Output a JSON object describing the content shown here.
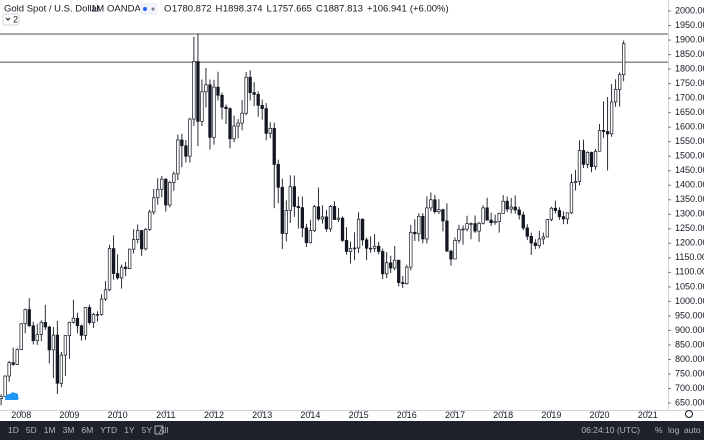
{
  "chart_data": {
    "type": "candlestick",
    "title": "Gold Spot / U.S. Dollar",
    "interval": "1M",
    "source": "OANDA",
    "ohlc_labels": [
      "O",
      "H",
      "L",
      "C"
    ],
    "change": {
      "value": 106.941,
      "label": "+106.941"
    },
    "change_pct": {
      "value": 6.0,
      "label": "(+6.00%)"
    },
    "indicator_count": "2",
    "up_color": "#ffffff",
    "down_color": "#131722",
    "border_color": "#131722",
    "x": [
      2007.583,
      2007.667,
      2007.75,
      2007.833,
      2007.917,
      2008,
      2008.083,
      2008.167,
      2008.25,
      2008.333,
      2008.417,
      2008.5,
      2008.583,
      2008.667,
      2008.75,
      2008.833,
      2008.917,
      2009,
      2009.083,
      2009.167,
      2009.25,
      2009.333,
      2009.417,
      2009.5,
      2009.583,
      2009.667,
      2009.75,
      2009.833,
      2009.917,
      2010,
      2010.083,
      2010.167,
      2010.25,
      2010.333,
      2010.417,
      2010.5,
      2010.583,
      2010.667,
      2010.75,
      2010.833,
      2010.917,
      2011,
      2011.083,
      2011.167,
      2011.25,
      2011.333,
      2011.417,
      2011.5,
      2011.583,
      2011.667,
      2011.75,
      2011.833,
      2011.917,
      2012,
      2012.083,
      2012.167,
      2012.25,
      2012.333,
      2012.417,
      2012.5,
      2012.583,
      2012.667,
      2012.75,
      2012.833,
      2012.917,
      2013,
      2013.083,
      2013.167,
      2013.25,
      2013.333,
      2013.417,
      2013.5,
      2013.583,
      2013.667,
      2013.75,
      2013.833,
      2013.917,
      2014,
      2014.083,
      2014.167,
      2014.25,
      2014.333,
      2014.417,
      2014.5,
      2014.583,
      2014.667,
      2014.75,
      2014.833,
      2014.917,
      2015,
      2015.083,
      2015.167,
      2015.25,
      2015.333,
      2015.417,
      2015.5,
      2015.583,
      2015.667,
      2015.75,
      2015.833,
      2015.917,
      2016,
      2016.083,
      2016.167,
      2016.25,
      2016.333,
      2016.417,
      2016.5,
      2016.583,
      2016.667,
      2016.75,
      2016.833,
      2016.917,
      2017,
      2017.083,
      2017.167,
      2017.25,
      2017.333,
      2017.417,
      2017.5,
      2017.583,
      2017.667,
      2017.75,
      2017.833,
      2017.917,
      2018,
      2018.083,
      2018.167,
      2018.25,
      2018.333,
      2018.417,
      2018.5,
      2018.583,
      2018.667,
      2018.75,
      2018.833,
      2018.917,
      2019,
      2019.083,
      2019.167,
      2019.25,
      2019.333,
      2019.417,
      2019.5,
      2019.583,
      2019.667,
      2019.75,
      2019.833,
      2019.917,
      2020,
      2020.083,
      2020.167,
      2020.25,
      2020.333,
      2020.417,
      2020.5
    ],
    "open": [
      665,
      673,
      743,
      789,
      783,
      834,
      923,
      972,
      916,
      865,
      886,
      928,
      912,
      833,
      884,
      718,
      815,
      882,
      928,
      942,
      916,
      883,
      979,
      927,
      955,
      955,
      1008,
      1040,
      1182,
      1096,
      1081,
      1118,
      1113,
      1180,
      1213,
      1244,
      1181,
      1248,
      1308,
      1357,
      1386,
      1421,
      1332,
      1410,
      1439,
      1556,
      1536,
      1500,
      1628,
      1826,
      1620,
      1722,
      1746,
      1565,
      1738,
      1710,
      1669,
      1664,
      1560,
      1604,
      1614,
      1648,
      1772,
      1719,
      1713,
      1675,
      1664,
      1579,
      1596,
      1472,
      1393,
      1234,
      1313,
      1395,
      1327,
      1323,
      1253,
      1202,
      1244,
      1326,
      1284,
      1291,
      1250,
      1327,
      1282,
      1287,
      1210,
      1172,
      1182,
      1184,
      1283,
      1212,
      1183,
      1183,
      1190,
      1172,
      1095,
      1133,
      1115,
      1142,
      1065,
      1061,
      1118,
      1238,
      1233,
      1293,
      1215,
      1322,
      1350,
      1309,
      1316,
      1277,
      1173,
      1146,
      1210,
      1248,
      1249,
      1268,
      1268,
      1242,
      1269,
      1322,
      1280,
      1271,
      1275,
      1303,
      1345,
      1318,
      1325,
      1315,
      1298,
      1253,
      1224,
      1201,
      1192,
      1215,
      1222,
      1282,
      1321,
      1313,
      1292,
      1284,
      1305,
      1409,
      1413,
      1520,
      1472,
      1513,
      1464,
      1517,
      1589,
      1585,
      1577,
      1687,
      1730,
      1780.872
    ],
    "high": [
      680,
      745,
      795,
      841,
      838,
      925,
      975,
      1011,
      930,
      923,
      935,
      988,
      916,
      912,
      933,
      826,
      884,
      930,
      1006,
      961,
      920,
      981,
      989,
      960,
      966,
      1024,
      1070,
      1195,
      1227,
      1162,
      1127,
      1136,
      1181,
      1249,
      1265,
      1246,
      1253,
      1316,
      1387,
      1424,
      1432,
      1424,
      1415,
      1447,
      1575,
      1577,
      1556,
      1632,
      1912,
      1921,
      1764,
      1804,
      1764,
      1763,
      1791,
      1719,
      1678,
      1668,
      1640,
      1628,
      1693,
      1790,
      1796,
      1755,
      1723,
      1695,
      1683,
      1617,
      1616,
      1488,
      1423,
      1348,
      1434,
      1434,
      1361,
      1361,
      1267,
      1280,
      1332,
      1392,
      1331,
      1315,
      1332,
      1345,
      1322,
      1293,
      1256,
      1206,
      1238,
      1307,
      1286,
      1220,
      1224,
      1232,
      1205,
      1182,
      1170,
      1157,
      1191,
      1143,
      1088,
      1126,
      1263,
      1283,
      1304,
      1304,
      1362,
      1375,
      1367,
      1352,
      1319,
      1338,
      1178,
      1220,
      1264,
      1262,
      1295,
      1272,
      1296,
      1274,
      1331,
      1357,
      1306,
      1299,
      1306,
      1366,
      1361,
      1356,
      1365,
      1326,
      1309,
      1266,
      1237,
      1214,
      1243,
      1237,
      1284,
      1326,
      1347,
      1324,
      1310,
      1306,
      1439,
      1453,
      1555,
      1557,
      1517,
      1516,
      1525,
      1611,
      1689,
      1704,
      1748,
      1765,
      1789,
      1898.374
    ],
    "low": [
      642,
      672,
      723,
      778,
      781,
      832,
      890,
      913,
      852,
      850,
      863,
      902,
      786,
      736,
      681,
      705,
      743,
      802,
      924,
      890,
      865,
      867,
      920,
      909,
      931,
      951,
      1002,
      1035,
      1075,
      1075,
      1044,
      1087,
      1111,
      1165,
      1200,
      1157,
      1175,
      1243,
      1299,
      1333,
      1358,
      1309,
      1324,
      1381,
      1418,
      1462,
      1478,
      1478,
      1604,
      1535,
      1604,
      1668,
      1523,
      1540,
      1692,
      1627,
      1611,
      1527,
      1548,
      1562,
      1589,
      1641,
      1692,
      1673,
      1636,
      1626,
      1555,
      1562,
      1321,
      1338,
      1180,
      1207,
      1270,
      1291,
      1251,
      1221,
      1187,
      1200,
      1239,
      1278,
      1268,
      1240,
      1240,
      1281,
      1273,
      1205,
      1161,
      1131,
      1142,
      1167,
      1192,
      1142,
      1168,
      1170,
      1162,
      1077,
      1080,
      1098,
      1107,
      1052,
      1046,
      1058,
      1107,
      1208,
      1207,
      1200,
      1199,
      1311,
      1302,
      1301,
      1241,
      1171,
      1123,
      1146,
      1200,
      1195,
      1241,
      1214,
      1236,
      1205,
      1265,
      1280,
      1260,
      1264,
      1237,
      1303,
      1307,
      1303,
      1302,
      1282,
      1245,
      1211,
      1160,
      1180,
      1182,
      1196,
      1221,
      1276,
      1303,
      1281,
      1266,
      1266,
      1301,
      1382,
      1400,
      1459,
      1459,
      1445,
      1453,
      1516,
      1563,
      1451,
      1567,
      1670,
      1671,
      1757.665
    ],
    "close": [
      673,
      743,
      789,
      783,
      834,
      923,
      972,
      916,
      865,
      886,
      928,
      912,
      833,
      884,
      718,
      815,
      882,
      928,
      942,
      916,
      883,
      979,
      927,
      955,
      955,
      1008,
      1040,
      1182,
      1096,
      1081,
      1118,
      1113,
      1180,
      1213,
      1244,
      1181,
      1248,
      1308,
      1357,
      1386,
      1421,
      1332,
      1410,
      1439,
      1556,
      1536,
      1500,
      1628,
      1826,
      1620,
      1722,
      1746,
      1565,
      1738,
      1710,
      1669,
      1664,
      1560,
      1604,
      1614,
      1648,
      1772,
      1719,
      1713,
      1675,
      1664,
      1579,
      1596,
      1472,
      1393,
      1234,
      1313,
      1395,
      1327,
      1323,
      1253,
      1202,
      1244,
      1326,
      1284,
      1291,
      1250,
      1327,
      1282,
      1287,
      1210,
      1172,
      1182,
      1184,
      1283,
      1212,
      1183,
      1183,
      1190,
      1172,
      1095,
      1133,
      1115,
      1142,
      1065,
      1061,
      1118,
      1238,
      1233,
      1293,
      1215,
      1322,
      1350,
      1309,
      1316,
      1277,
      1173,
      1146,
      1210,
      1248,
      1249,
      1268,
      1268,
      1242,
      1269,
      1322,
      1280,
      1271,
      1275,
      1303,
      1345,
      1318,
      1325,
      1315,
      1298,
      1253,
      1224,
      1201,
      1192,
      1215,
      1222,
      1282,
      1321,
      1313,
      1292,
      1284,
      1305,
      1409,
      1413,
      1520,
      1472,
      1513,
      1464,
      1517,
      1589,
      1585,
      1577,
      1687,
      1730,
      1781,
      1887.813
    ],
    "hlines": [
      1921,
      1824
    ],
    "xlim": [
      2007.56,
      2021.42
    ],
    "xticks": [
      2008,
      2009,
      2010,
      2011,
      2012,
      2013,
      2014,
      2015,
      2016,
      2017,
      2018,
      2019,
      2020,
      2021
    ],
    "ylim": [
      626,
      2038
    ],
    "yticks": [
      {
        "value": 650,
        "label": "650.000"
      },
      {
        "value": 700,
        "label": "700.000"
      },
      {
        "value": 750,
        "label": "750.000"
      },
      {
        "value": 800,
        "label": "800.000"
      },
      {
        "value": 850,
        "label": "850.000"
      },
      {
        "value": 900,
        "label": "900.000"
      },
      {
        "value": 950,
        "label": "950.000"
      },
      {
        "value": 1000,
        "label": "1000.000"
      },
      {
        "value": 1050,
        "label": "1050.000"
      },
      {
        "value": 1100,
        "label": "1100.000"
      },
      {
        "value": 1150,
        "label": "1150.000"
      },
      {
        "value": 1200,
        "label": "1200.000"
      },
      {
        "value": 1250,
        "label": "1250.000"
      },
      {
        "value": 1300,
        "label": "1300.000"
      },
      {
        "value": 1350,
        "label": "1350.000"
      },
      {
        "value": 1400,
        "label": "1400.000"
      },
      {
        "value": 1450,
        "label": "1450.000"
      },
      {
        "value": 1500,
        "label": "1500.000"
      },
      {
        "value": 1550,
        "label": "1550.000"
      },
      {
        "value": 1600,
        "label": "1600.000"
      },
      {
        "value": 1650,
        "label": "1650.000"
      },
      {
        "value": 1700,
        "label": "1700.000"
      },
      {
        "value": 1750,
        "label": "1750.000"
      },
      {
        "value": 1800,
        "label": "1800.000"
      },
      {
        "value": 1850,
        "label": "1850.000"
      },
      {
        "value": 1900,
        "label": "1900.000"
      },
      {
        "value": 1950,
        "label": "1950.000"
      },
      {
        "value": 2000,
        "label": "2000.000"
      }
    ],
    "toolbar": {
      "ranges": [
        "1D",
        "5D",
        "1M",
        "3M",
        "6M",
        "YTD",
        "1Y",
        "5Y",
        "All"
      ],
      "time": "06:24:10 (UTC)",
      "percent": "%",
      "log": "log",
      "auto": "auto"
    }
  }
}
